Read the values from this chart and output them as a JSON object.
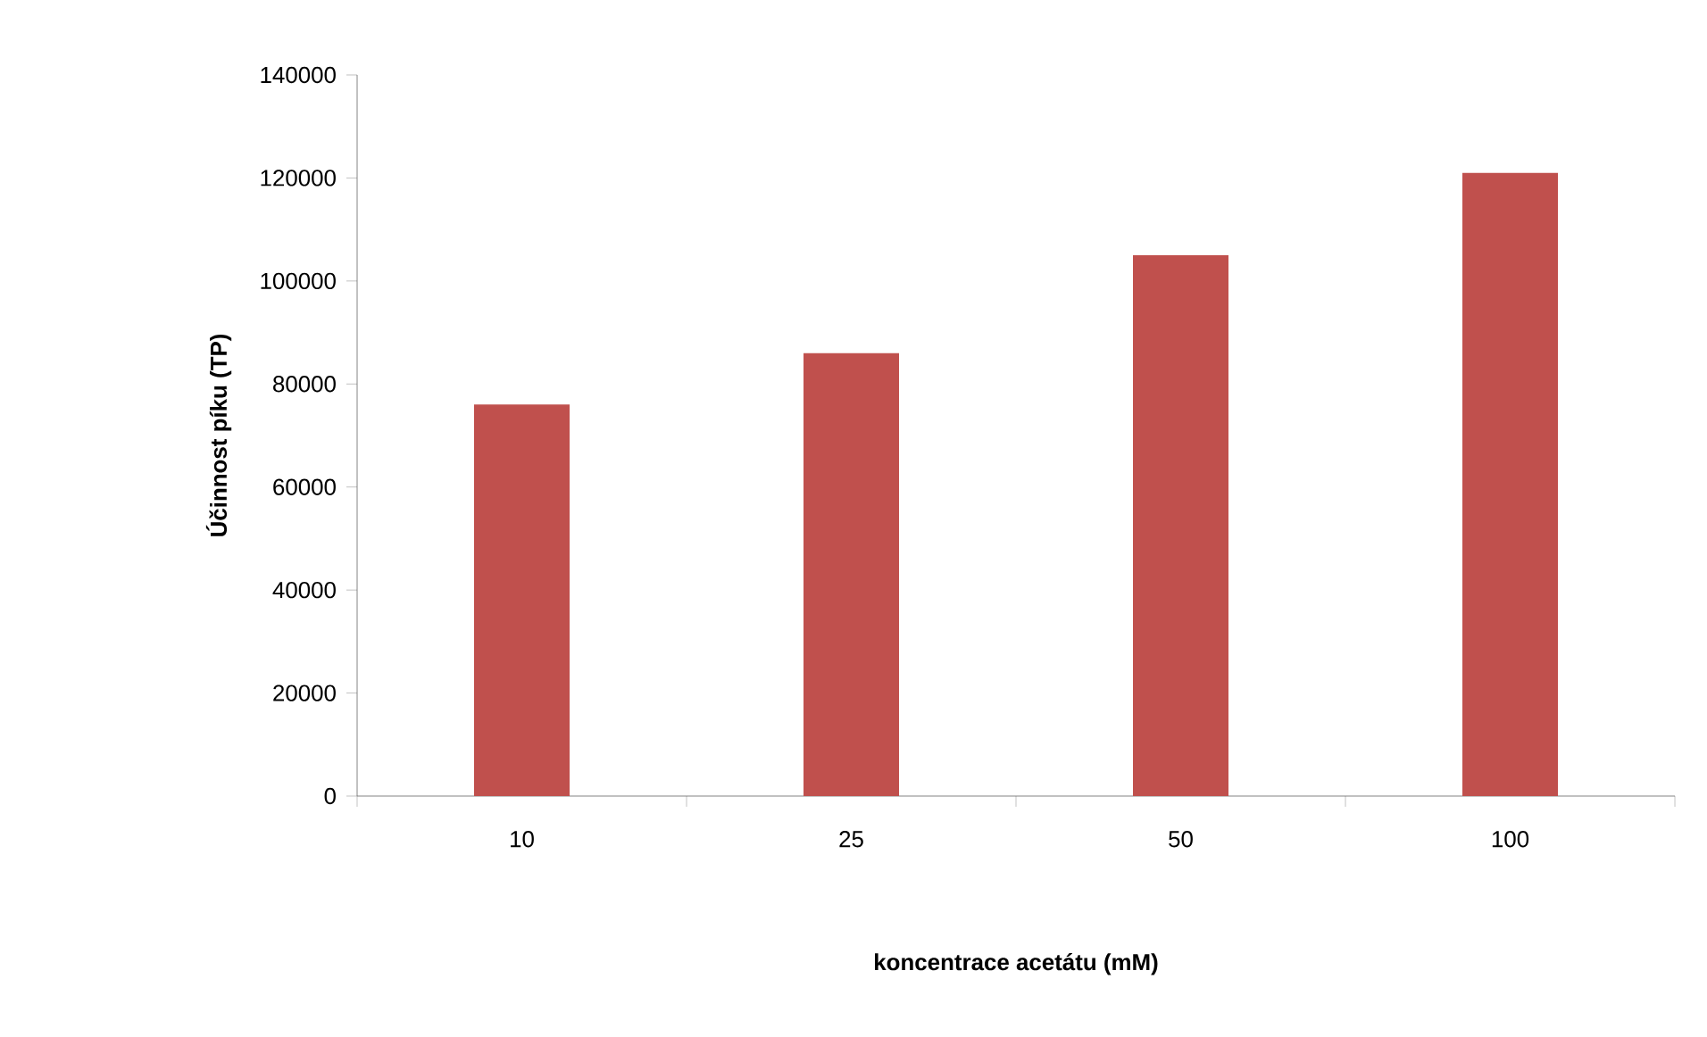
{
  "chart_data": {
    "type": "bar",
    "categories": [
      "10",
      "25",
      "50",
      "100"
    ],
    "values": [
      76000,
      86000,
      105000,
      121000
    ],
    "color": "#c0504d",
    "xlabel": "koncentrace acetátu (mM)",
    "ylabel": "Účinnost píku (TP)",
    "ylim": [
      0,
      140000
    ],
    "yticks": [
      0,
      20000,
      40000,
      60000,
      80000,
      100000,
      120000,
      140000
    ],
    "grid": false
  }
}
